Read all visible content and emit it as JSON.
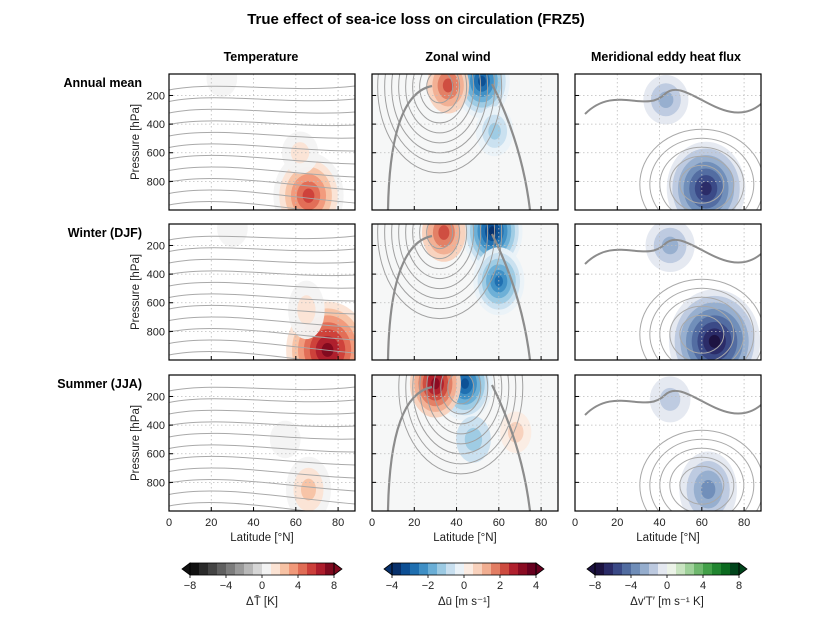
{
  "chart_data": {
    "type": "contour-panel-grid",
    "title": "True effect of sea-ice loss on circulation (FRZ5)",
    "columns": [
      "Temperature",
      "Zonal wind",
      "Meridional eddy heat flux"
    ],
    "rows": [
      "Annual mean",
      "Winter (DJF)",
      "Summer (JJA)"
    ],
    "xlabel": "Latitude  [°N]",
    "ylabel": "Pressure  [hPa]",
    "xlim": [
      0,
      88
    ],
    "ylim": [
      1000,
      50
    ],
    "xticks": [
      "0",
      "20",
      "40",
      "60",
      "80"
    ],
    "yticks": [
      "200",
      "400",
      "600",
      "800"
    ],
    "colorbars": [
      {
        "variable": "Temperature",
        "label": "ΔT̄  [K]",
        "ticks": [
          "−8",
          "−4",
          "0",
          "4",
          "8"
        ],
        "range": [
          -8,
          8
        ],
        "colors": [
          "#111111",
          "#2a2a2a",
          "#444444",
          "#606060",
          "#7c7c7c",
          "#9a9a9a",
          "#b8b8b8",
          "#d6d6d6",
          "#f3f3f3",
          "#fbe3d4",
          "#f7c2a4",
          "#f1997a",
          "#e06c55",
          "#cc3f3a",
          "#ad1d2c",
          "#7f0a1f"
        ]
      },
      {
        "variable": "Zonal wind",
        "label": "Δū  [m s⁻¹]",
        "ticks": [
          "−4",
          "−2",
          "0",
          "2",
          "4"
        ],
        "range": [
          -4,
          4
        ],
        "colors": [
          "#07306b",
          "#0d4f94",
          "#1f6fb0",
          "#3f8fc5",
          "#6aaed6",
          "#9ccae3",
          "#c8dfef",
          "#eaf2f8",
          "#fbece3",
          "#f8d1bc",
          "#f1ae91",
          "#e27d63",
          "#cd4b3f",
          "#b0202d",
          "#8a0b22",
          "#67001f"
        ]
      },
      {
        "variable": "Meridional eddy heat flux",
        "label": "Δv′T′  [m s⁻¹ K]",
        "ticks": [
          "−8",
          "−4",
          "0",
          "4",
          "8"
        ],
        "range": [
          -8,
          8
        ],
        "colors": [
          "#1c1240",
          "#2a2a66",
          "#3a4986",
          "#516ca0",
          "#6f8db8",
          "#95adcd",
          "#bcc9df",
          "#e4e8f0",
          "#ecf3e8",
          "#c9e4c1",
          "#9fd19a",
          "#6fb86e",
          "#43a049",
          "#218530",
          "#0b6a1f",
          "#00441b"
        ]
      }
    ],
    "panels": [
      {
        "row": "Annual mean",
        "column": "Temperature",
        "fill": [
          {
            "lat": 66,
            "p": 900,
            "value": 5.5
          },
          {
            "lat": 62,
            "p": 600,
            "value": 1.5
          },
          {
            "lat": 25,
            "p": 80,
            "value": 0.8
          }
        ]
      },
      {
        "row": "Annual mean",
        "column": "Zonal wind",
        "fill": [
          {
            "lat": 52,
            "p": 100,
            "value": -3.5
          },
          {
            "lat": 58,
            "p": 450,
            "value": -1.5
          },
          {
            "lat": 36,
            "p": 130,
            "value": 2.0
          }
        ]
      },
      {
        "row": "Annual mean",
        "column": "Meridional eddy heat flux",
        "fill": [
          {
            "lat": 62,
            "p": 850,
            "value": -6.5
          },
          {
            "lat": 43,
            "p": 230,
            "value": -2.5
          }
        ]
      },
      {
        "row": "Winter (DJF)",
        "column": "Temperature",
        "fill": [
          {
            "lat": 75,
            "p": 930,
            "value": 7.0
          },
          {
            "lat": 65,
            "p": 650,
            "value": 1.5
          },
          {
            "lat": 30,
            "p": 80,
            "value": 0.8
          }
        ]
      },
      {
        "row": "Winter (DJF)",
        "column": "Zonal wind",
        "fill": [
          {
            "lat": 57,
            "p": 100,
            "value": -4.0
          },
          {
            "lat": 60,
            "p": 450,
            "value": -3.0
          },
          {
            "lat": 34,
            "p": 110,
            "value": 2.2
          }
        ]
      },
      {
        "row": "Winter (DJF)",
        "column": "Meridional eddy heat flux",
        "fill": [
          {
            "lat": 66,
            "p": 870,
            "value": -8.0
          },
          {
            "lat": 45,
            "p": 200,
            "value": -3.0
          }
        ]
      },
      {
        "row": "Summer (JJA)",
        "column": "Temperature",
        "fill": [
          {
            "lat": 66,
            "p": 850,
            "value": 2.5
          },
          {
            "lat": 55,
            "p": 500,
            "value": 0.8
          }
        ]
      },
      {
        "row": "Summer (JJA)",
        "column": "Zonal wind",
        "fill": [
          {
            "lat": 44,
            "p": 110,
            "value": -3.5
          },
          {
            "lat": 30,
            "p": 110,
            "value": 3.0
          },
          {
            "lat": 48,
            "p": 500,
            "value": -1.2
          },
          {
            "lat": 68,
            "p": 450,
            "value": 0.8
          }
        ]
      },
      {
        "row": "Summer (JJA)",
        "column": "Meridional eddy heat flux",
        "fill": [
          {
            "lat": 63,
            "p": 850,
            "value": -4.0
          },
          {
            "lat": 45,
            "p": 220,
            "value": -2.0
          }
        ]
      }
    ]
  }
}
